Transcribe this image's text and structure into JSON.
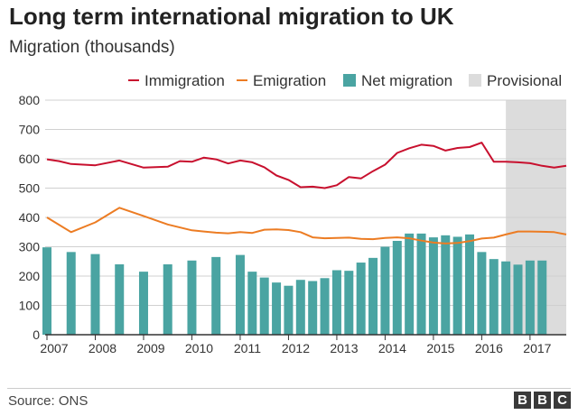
{
  "title": "Long term international migration to UK",
  "subtitle": "Migration (thousands)",
  "source": "Source: ONS",
  "logo_letters": [
    "B",
    "B",
    "C"
  ],
  "colors": {
    "immigration": "#c8102e",
    "emigration": "#ec7c23",
    "net": "#4aa4a2",
    "provisional": "#dcdcdc",
    "grid": "#d0d0d0"
  },
  "chart_data": {
    "type": "bar",
    "ylim": [
      0,
      800
    ],
    "yticks": [
      0,
      100,
      200,
      300,
      400,
      500,
      600,
      700,
      800
    ],
    "xlim": [
      2007,
      2017.75
    ],
    "xticks": [
      "2007",
      "2008",
      "2009",
      "2010",
      "2011",
      "2012",
      "2013",
      "2014",
      "2015",
      "2016",
      "2017"
    ],
    "legend": [
      {
        "name": "Immigration",
        "kind": "line",
        "color": "#c8102e"
      },
      {
        "name": "Emigration",
        "kind": "line",
        "color": "#ec7c23"
      },
      {
        "name": "Net migration",
        "kind": "bar",
        "color": "#4aa4a2"
      },
      {
        "name": "Provisional",
        "kind": "area",
        "color": "#dcdcdc"
      }
    ],
    "provisional_range": [
      2016.5,
      2017.75
    ],
    "net_migration": {
      "name": "Net migration",
      "x": [
        2007.0,
        2007.5,
        2008.0,
        2008.5,
        2009.0,
        2009.5,
        2010.0,
        2010.5,
        2011.0,
        2011.25,
        2011.5,
        2011.75,
        2012.0,
        2012.25,
        2012.5,
        2012.75,
        2013.0,
        2013.25,
        2013.5,
        2013.75,
        2014.0,
        2014.25,
        2014.5,
        2014.75,
        2015.0,
        2015.25,
        2015.5,
        2015.75,
        2016.0,
        2016.25,
        2016.5,
        2016.75,
        2017.0,
        2017.25
      ],
      "values": [
        298,
        282,
        275,
        240,
        215,
        240,
        253,
        265,
        272,
        215,
        195,
        178,
        167,
        187,
        183,
        193,
        220,
        218,
        246,
        262,
        300,
        320,
        345,
        345,
        332,
        339,
        334,
        342,
        282,
        258,
        250,
        239,
        253,
        253
      ]
    },
    "immigration": {
      "name": "Immigration",
      "x": [
        2007.0,
        2007.25,
        2007.5,
        2008.0,
        2008.5,
        2009.0,
        2009.5,
        2009.75,
        2010.0,
        2010.25,
        2010.5,
        2010.75,
        2011.0,
        2011.25,
        2011.5,
        2011.75,
        2012.0,
        2012.25,
        2012.5,
        2012.75,
        2013.0,
        2013.25,
        2013.5,
        2013.75,
        2014.0,
        2014.25,
        2014.5,
        2014.75,
        2015.0,
        2015.25,
        2015.5,
        2015.75,
        2016.0,
        2016.25,
        2016.5,
        2016.75,
        2017.0,
        2017.25,
        2017.5,
        2017.75
      ],
      "values": [
        598,
        592,
        582,
        578,
        594,
        570,
        573,
        592,
        590,
        604,
        598,
        584,
        594,
        588,
        571,
        543,
        528,
        503,
        505,
        500,
        510,
        538,
        533,
        558,
        580,
        620,
        636,
        648,
        644,
        628,
        637,
        640,
        655,
        590,
        590,
        588,
        585,
        576,
        570,
        576
      ]
    },
    "emigration": {
      "name": "Emigration",
      "x": [
        2007.0,
        2007.5,
        2008.0,
        2008.5,
        2009.0,
        2009.5,
        2010.0,
        2010.25,
        2010.5,
        2010.75,
        2011.0,
        2011.25,
        2011.5,
        2011.75,
        2012.0,
        2012.25,
        2012.5,
        2012.75,
        2013.0,
        2013.25,
        2013.5,
        2013.75,
        2014.0,
        2014.25,
        2014.5,
        2014.75,
        2015.0,
        2015.25,
        2015.5,
        2015.75,
        2016.0,
        2016.25,
        2016.5,
        2016.75,
        2017.0,
        2017.25,
        2017.5,
        2017.75
      ],
      "values": [
        400,
        350,
        383,
        433,
        405,
        376,
        356,
        352,
        348,
        346,
        350,
        347,
        358,
        359,
        357,
        350,
        332,
        329,
        330,
        331,
        327,
        326,
        330,
        332,
        329,
        321,
        314,
        311,
        313,
        319,
        328,
        331,
        342,
        352,
        352,
        351,
        350,
        342
      ]
    }
  }
}
